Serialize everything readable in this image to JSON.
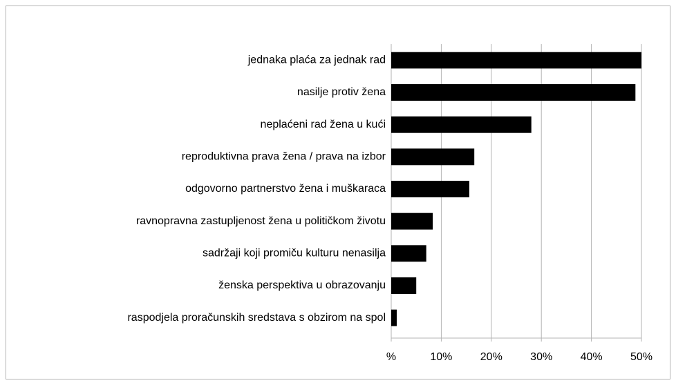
{
  "chart_data": {
    "type": "bar",
    "orientation": "horizontal",
    "categories": [
      "jednaka plaća za jednak rad",
      "nasilje protiv žena",
      "neplaćeni rad žena u kući",
      "reproduktivna prava žena / prava na izbor",
      "odgovorno partnerstvo žena i muškaraca",
      "ravnopravna zastupljenost žena u političkom životu",
      "sadržaji koji promiču kulturu nenasilja",
      "ženska perspektiva u obrazovanju",
      "raspodjela proračunskih sredstava s obzirom na spol"
    ],
    "values": [
      50,
      48.8,
      28,
      16.6,
      15.6,
      8.3,
      7,
      5,
      1.1
    ],
    "color": "#000000",
    "xlim": [
      0,
      50
    ],
    "xticks": [
      {
        "value": 0,
        "label": "%"
      },
      {
        "value": 10,
        "label": "10%"
      },
      {
        "value": 20,
        "label": "20%"
      },
      {
        "value": 30,
        "label": "30%"
      },
      {
        "value": 40,
        "label": "40%"
      },
      {
        "value": 50,
        "label": "50%"
      }
    ],
    "grid": true
  }
}
